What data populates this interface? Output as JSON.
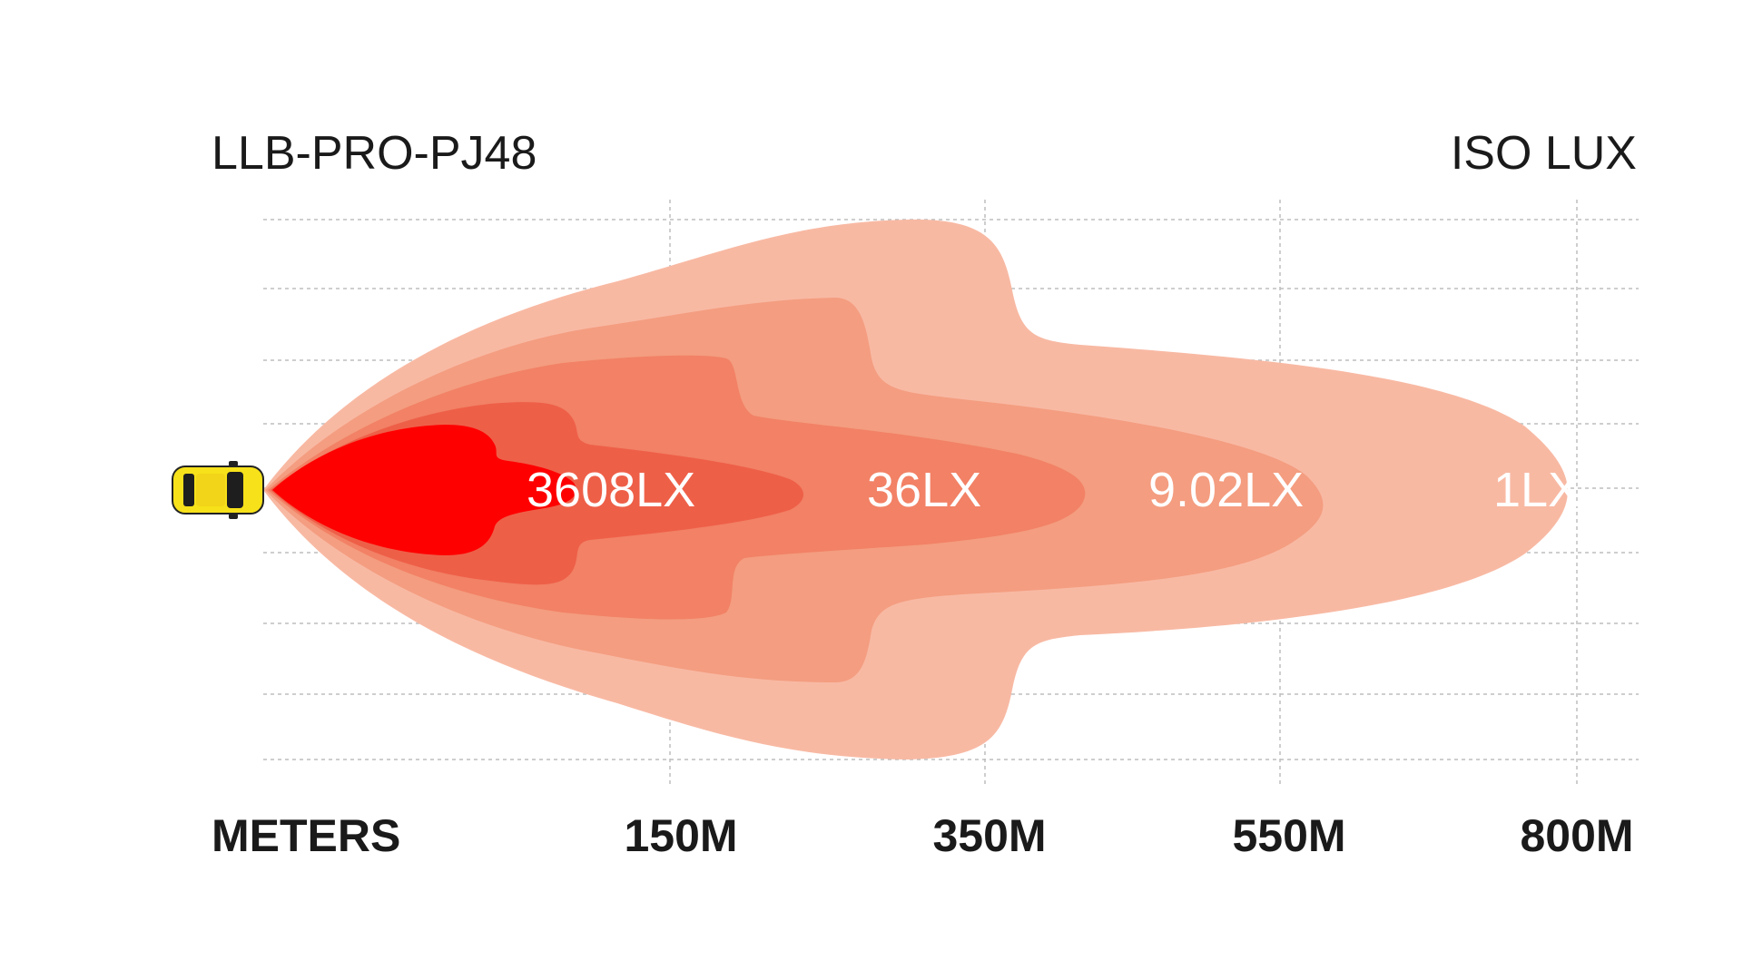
{
  "header": {
    "model": "LLB-PRO-PJ48",
    "unit": "ISO LUX"
  },
  "axis": {
    "label": "METERS",
    "ticks": [
      "150M",
      "350M",
      "550M",
      "800M"
    ]
  },
  "zones": [
    {
      "label": "3608LX",
      "color": "#ff0000"
    },
    {
      "label": "36LX",
      "color": "#ee5f48"
    },
    {
      "label": "9.02LX",
      "color": "#f28165"
    },
    {
      "label": "1LX",
      "color": "#f49d80"
    }
  ],
  "colors": {
    "outer_zone": "#f8b9a3",
    "vehicle_body": "#f7e11a"
  },
  "icons": {
    "vehicle": "car-top-view-icon"
  }
}
